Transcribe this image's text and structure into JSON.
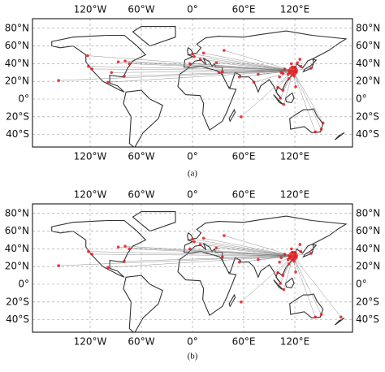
{
  "panels": [
    {
      "label": "(a)",
      "xlim": [
        -187.6,
        187.6
      ],
      "ylim": [
        -54.1,
        90.8
      ],
      "xticks": [
        {
          "value": -120,
          "label": "120°W"
        },
        {
          "value": -60,
          "label": "60°W"
        },
        {
          "value": 0,
          "label": "0°"
        },
        {
          "value": 60,
          "label": "60°E"
        },
        {
          "value": 120,
          "label": "120°E"
        }
      ],
      "yticks": [
        {
          "value": 80,
          "label": "80°N"
        },
        {
          "value": 60,
          "label": "60°N"
        },
        {
          "value": 40,
          "label": "40°N"
        },
        {
          "value": 20,
          "label": "20°N"
        },
        {
          "value": 0,
          "label": "0°"
        },
        {
          "value": -20,
          "label": "20°S"
        },
        {
          "value": -40,
          "label": "40°S"
        }
      ],
      "hub": [
        118,
        32
      ],
      "points": [
        [
          -122,
          37
        ],
        [
          -118,
          34
        ],
        [
          -74,
          40
        ],
        [
          -87,
          42
        ],
        [
          -80,
          26
        ],
        [
          -95,
          30
        ],
        [
          -157,
          21
        ],
        [
          -99,
          19
        ],
        [
          -123,
          49
        ],
        [
          -79,
          43
        ],
        [
          2,
          48
        ],
        [
          0,
          51
        ],
        [
          13,
          52
        ],
        [
          9,
          45
        ],
        [
          -3,
          40
        ],
        [
          37,
          55
        ],
        [
          28,
          41
        ],
        [
          55,
          25
        ],
        [
          35,
          31
        ],
        [
          77,
          28
        ],
        [
          72,
          19
        ],
        [
          103,
          1
        ],
        [
          100,
          13
        ],
        [
          106,
          10
        ],
        [
          121,
          14
        ],
        [
          107,
          -6
        ],
        [
          151,
          -34
        ],
        [
          144,
          -37
        ],
        [
          153,
          -27
        ],
        [
          127,
          37
        ],
        [
          139,
          35
        ],
        [
          31,
          30
        ],
        [
          57,
          -20
        ],
        [
          116,
          40
        ],
        [
          121,
          31
        ],
        [
          113,
          23
        ],
        [
          104,
          30
        ],
        [
          114,
          30
        ],
        [
          108,
          34
        ],
        [
          117,
          36
        ],
        [
          120,
          36
        ],
        [
          126,
          45
        ],
        [
          123,
          41
        ],
        [
          112,
          28
        ],
        [
          119,
          26
        ],
        [
          106,
          29
        ],
        [
          102,
          25
        ]
      ]
    },
    {
      "label": "(b)",
      "xlim": [
        -187.6,
        187.6
      ],
      "ylim": [
        -54.1,
        90.8
      ],
      "xticks": [
        {
          "value": -120,
          "label": "120°W"
        },
        {
          "value": -60,
          "label": "60°W"
        },
        {
          "value": 0,
          "label": "0°"
        },
        {
          "value": 60,
          "label": "60°E"
        },
        {
          "value": 120,
          "label": "120°E"
        }
      ],
      "yticks": [
        {
          "value": 80,
          "label": "80°N"
        },
        {
          "value": 60,
          "label": "60°N"
        },
        {
          "value": 40,
          "label": "40°N"
        },
        {
          "value": 20,
          "label": "20°N"
        },
        {
          "value": 0,
          "label": "0°"
        },
        {
          "value": -20,
          "label": "20°S"
        },
        {
          "value": -40,
          "label": "40°S"
        }
      ],
      "hub": [
        118,
        32
      ],
      "points": [
        [
          -122,
          37
        ],
        [
          -118,
          34
        ],
        [
          -74,
          40
        ],
        [
          -87,
          42
        ],
        [
          -80,
          26
        ],
        [
          -157,
          21
        ],
        [
          -99,
          19
        ],
        [
          -79,
          43
        ],
        [
          2,
          48
        ],
        [
          0,
          51
        ],
        [
          13,
          52
        ],
        [
          9,
          45
        ],
        [
          -3,
          40
        ],
        [
          37,
          55
        ],
        [
          28,
          41
        ],
        [
          55,
          25
        ],
        [
          35,
          31
        ],
        [
          77,
          28
        ],
        [
          103,
          1
        ],
        [
          100,
          13
        ],
        [
          106,
          10
        ],
        [
          121,
          14
        ],
        [
          107,
          -6
        ],
        [
          151,
          -34
        ],
        [
          144,
          -37
        ],
        [
          174,
          -37
        ],
        [
          127,
          37
        ],
        [
          139,
          35
        ],
        [
          57,
          -20
        ],
        [
          116,
          40
        ],
        [
          121,
          31
        ],
        [
          113,
          23
        ],
        [
          104,
          30
        ],
        [
          114,
          30
        ],
        [
          108,
          34
        ],
        [
          117,
          36
        ],
        [
          120,
          36
        ],
        [
          126,
          45
        ],
        [
          112,
          28
        ],
        [
          119,
          26
        ],
        [
          102,
          25
        ]
      ]
    }
  ]
}
